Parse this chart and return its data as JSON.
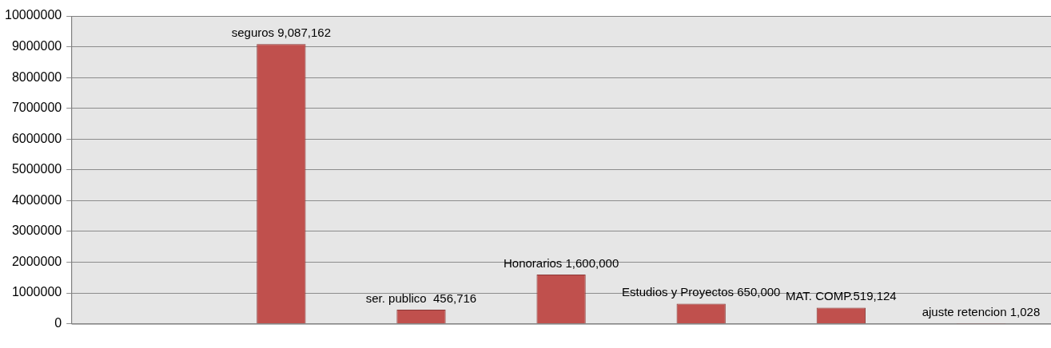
{
  "chart_data": {
    "type": "bar",
    "categories": [
      null,
      null,
      null,
      null,
      null,
      null,
      null
    ],
    "values": [
      null,
      9087162,
      456716,
      1600000,
      650000,
      519124,
      1028
    ],
    "value_labels": [
      null,
      "seguros 9,087,162",
      "ser. publico  456,716",
      "Honorarios 1,600,000",
      "Estudios y Proyectos 650,000",
      "MAT. COMP.519,124",
      "ajuste retencion 1,028"
    ],
    "color": "#c0504d",
    "ylim": [
      0,
      10000000
    ],
    "yticks": [
      0,
      1000000,
      2000000,
      3000000,
      4000000,
      5000000,
      6000000,
      7000000,
      8000000,
      9000000,
      10000000
    ],
    "grid": "y",
    "legend": false
  }
}
